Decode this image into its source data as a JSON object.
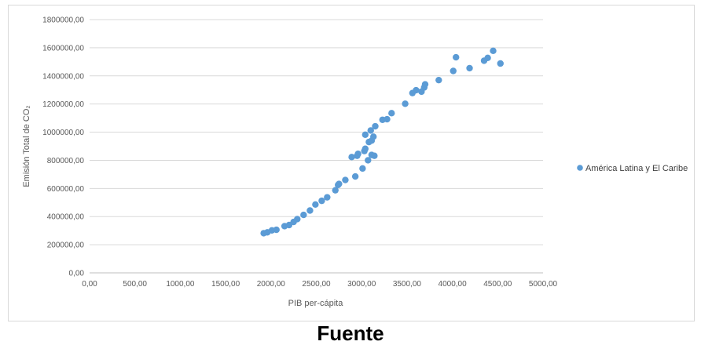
{
  "chart_data": {
    "type": "scatter",
    "xlabel": "PIB per-cápita",
    "ylabel": "Emisión Total de CO₂",
    "xlim": [
      0,
      5000
    ],
    "ylim": [
      0,
      1800000
    ],
    "x_ticks": [
      "0,00",
      "500,00",
      "1000,00",
      "1500,00",
      "2000,00",
      "2500,00",
      "3000,00",
      "3500,00",
      "4000,00",
      "4500,00",
      "5000,00"
    ],
    "y_ticks": [
      "0,00",
      "200000,00",
      "400000,00",
      "600000,00",
      "800000,00",
      "1000000,00",
      "1200000,00",
      "1400000,00",
      "1600000,00",
      "1800000,00"
    ],
    "grid": "horizontal",
    "legend_position": "right",
    "color": "#5b9bd5",
    "series": [
      {
        "name": "América Latina y El Caribe",
        "points": [
          [
            1920,
            282000
          ],
          [
            1960,
            288000
          ],
          [
            2010,
            302000
          ],
          [
            2060,
            306000
          ],
          [
            2150,
            332000
          ],
          [
            2200,
            340000
          ],
          [
            2250,
            362000
          ],
          [
            2290,
            382000
          ],
          [
            2360,
            412000
          ],
          [
            2430,
            443000
          ],
          [
            2490,
            486000
          ],
          [
            2560,
            512000
          ],
          [
            2620,
            537000
          ],
          [
            2710,
            587000
          ],
          [
            2740,
            625000
          ],
          [
            2750,
            632000
          ],
          [
            2820,
            660000
          ],
          [
            2890,
            823000
          ],
          [
            2930,
            685000
          ],
          [
            2950,
            832000
          ],
          [
            2960,
            846000
          ],
          [
            3010,
            742000
          ],
          [
            3030,
            866000
          ],
          [
            3040,
            882000
          ],
          [
            3040,
            982000
          ],
          [
            3070,
            800000
          ],
          [
            3080,
            930000
          ],
          [
            3110,
            940000
          ],
          [
            3100,
            1012000
          ],
          [
            3110,
            838000
          ],
          [
            3130,
            968000
          ],
          [
            3140,
            832000
          ],
          [
            3150,
            1042000
          ],
          [
            3230,
            1088000
          ],
          [
            3280,
            1092000
          ],
          [
            3330,
            1135000
          ],
          [
            3480,
            1202000
          ],
          [
            3560,
            1278000
          ],
          [
            3600,
            1298000
          ],
          [
            3660,
            1288000
          ],
          [
            3690,
            1318000
          ],
          [
            3700,
            1340000
          ],
          [
            3850,
            1370000
          ],
          [
            4010,
            1435000
          ],
          [
            4040,
            1532000
          ],
          [
            4190,
            1455000
          ],
          [
            4350,
            1508000
          ],
          [
            4390,
            1528000
          ],
          [
            4450,
            1578000
          ],
          [
            4530,
            1488000
          ]
        ]
      }
    ]
  },
  "below_text": "Fuente"
}
